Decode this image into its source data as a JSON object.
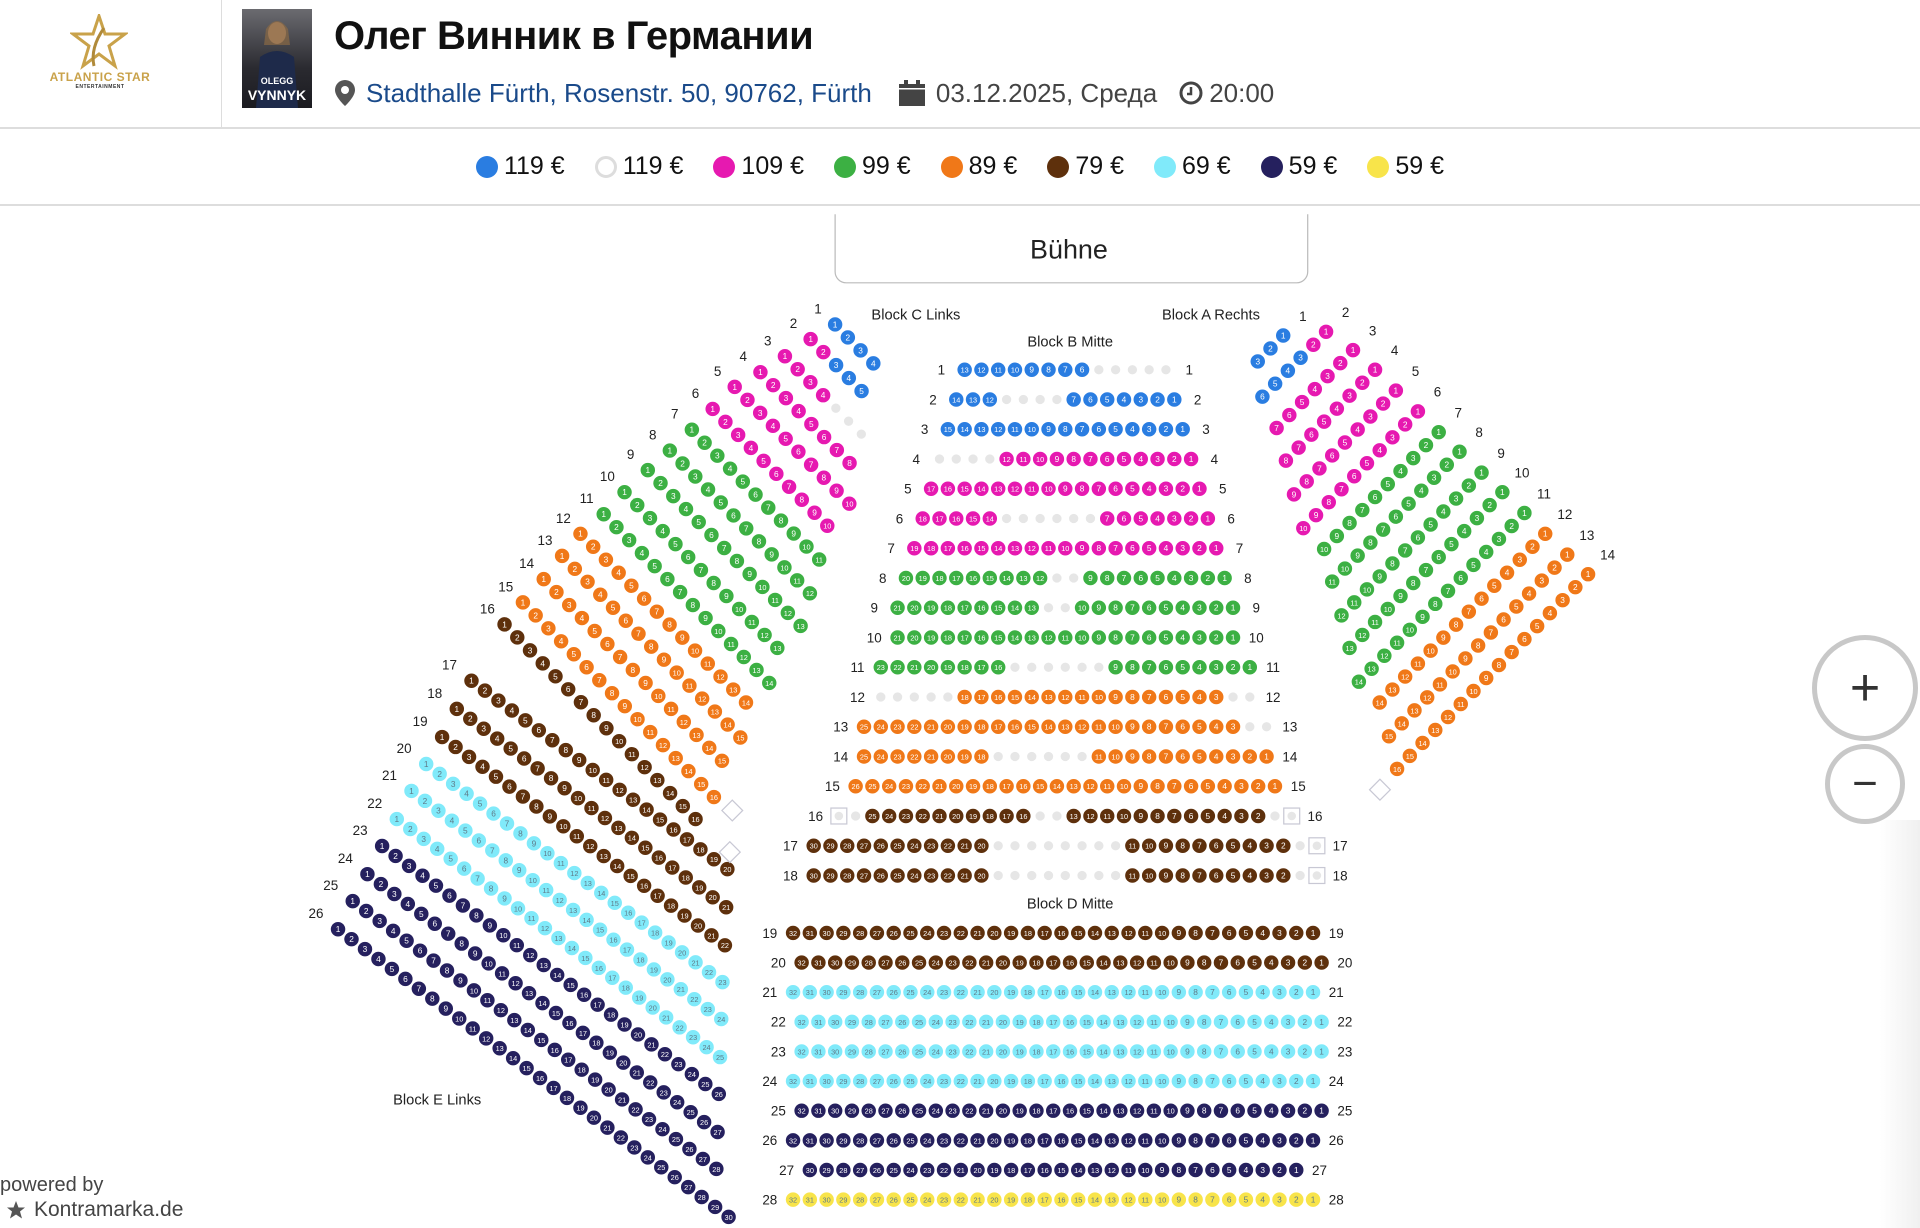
{
  "header": {
    "logo_text": "ATLANTIC STAR",
    "logo_subtext": "ENTERTAINMENT",
    "poster_line1": "OLEGG",
    "poster_line2": "VYNNYK",
    "title": "Олег Винник в Германии",
    "venue": "Stadthalle Fürth, Rosenstr. 50, 90762, Fürth",
    "date": "03.12.2025, Среда",
    "time": "20:00"
  },
  "legend": [
    {
      "price": "119 €",
      "color": "#2a7de1"
    },
    {
      "price": "119 €",
      "color": "#ffffff"
    },
    {
      "price": "109 €",
      "color": "#e619b0"
    },
    {
      "price": "99 €",
      "color": "#3cb043"
    },
    {
      "price": "89 €",
      "color": "#f07818"
    },
    {
      "price": "79 €",
      "color": "#5e300c"
    },
    {
      "price": "69 €",
      "color": "#80eafa"
    },
    {
      "price": "59 €",
      "color": "#25205e"
    },
    {
      "price": "59 €",
      "color": "#f8e44a"
    }
  ],
  "colors": {
    "blue": "#2a7de1",
    "magenta": "#e619b0",
    "green": "#3cb043",
    "orange": "#f07818",
    "brown": "#5e300c",
    "cyan": "#80eafa",
    "navy": "#25205e",
    "yellow": "#f8e44a",
    "empty": "#e6e6e6"
  },
  "stage": "Bühne",
  "blocks": {
    "c_links": "Block C Links",
    "b_mitte": "Block B Mitte",
    "a_rechts": "Block A Rechts",
    "d_mitte": "Block D Mitte",
    "e_links": "Block E Links"
  },
  "block_b_rows": [
    {
      "row": "1",
      "seats": [
        [
          "blue",
          13,
          6
        ],
        [
          "empty",
          5
        ]
      ]
    },
    {
      "row": "2",
      "seats": [
        [
          "blue",
          14,
          12
        ],
        [
          "empty",
          4
        ],
        [
          "blue",
          7,
          1
        ]
      ]
    },
    {
      "row": "3",
      "seats": [
        [
          "blue",
          15,
          1
        ]
      ]
    },
    {
      "row": "4",
      "seats": [
        [
          "empty",
          4
        ],
        [
          "magenta",
          12,
          1
        ]
      ]
    },
    {
      "row": "5",
      "seats": [
        [
          "magenta",
          17,
          1
        ]
      ]
    },
    {
      "row": "6",
      "seats": [
        [
          "magenta",
          18,
          14
        ],
        [
          "empty",
          6
        ],
        [
          "magenta",
          7,
          1
        ]
      ]
    },
    {
      "row": "7",
      "seats": [
        [
          "magenta",
          19,
          1
        ]
      ]
    },
    {
      "row": "8",
      "seats": [
        [
          "green",
          20,
          12
        ],
        [
          "empty",
          2
        ],
        [
          "green",
          9,
          1
        ]
      ]
    },
    {
      "row": "9",
      "seats": [
        [
          "green",
          21,
          13
        ],
        [
          "empty",
          2
        ],
        [
          "green",
          10,
          1
        ]
      ]
    },
    {
      "row": "10",
      "seats": [
        [
          "green",
          21,
          1
        ]
      ]
    },
    {
      "row": "11",
      "seats": [
        [
          "green",
          23,
          16
        ],
        [
          "empty",
          6
        ],
        [
          "green",
          9,
          1
        ]
      ]
    },
    {
      "row": "12",
      "seats": [
        [
          "empty",
          5
        ],
        [
          "orange",
          18,
          3
        ],
        [
          "empty",
          2
        ]
      ]
    },
    {
      "row": "13",
      "seats": [
        [
          "orange",
          25,
          3
        ],
        [
          "empty",
          2
        ]
      ]
    },
    {
      "row": "14",
      "seats": [
        [
          "orange",
          25,
          18
        ],
        [
          "empty",
          6
        ],
        [
          "orange",
          11,
          1
        ]
      ]
    },
    {
      "row": "15",
      "seats": [
        [
          "orange",
          26,
          1
        ]
      ]
    },
    {
      "row": "16",
      "seats": [
        [
          "box"
        ],
        [
          "empty",
          1
        ],
        [
          "brown",
          25,
          16
        ],
        [
          "empty",
          2
        ],
        [
          "brown",
          13,
          2
        ],
        [
          "empty",
          1
        ],
        [
          "box"
        ]
      ]
    },
    {
      "row": "17",
      "seats": [
        [
          "brown",
          30,
          20
        ],
        [
          "empty",
          8
        ],
        [
          "brown",
          11,
          2
        ],
        [
          "empty",
          1
        ],
        [
          "box"
        ]
      ]
    },
    {
      "row": "18",
      "seats": [
        [
          "brown",
          30,
          20
        ],
        [
          "empty",
          8
        ],
        [
          "brown",
          11,
          2
        ],
        [
          "empty",
          1
        ],
        [
          "box"
        ]
      ]
    }
  ],
  "block_d_rows": [
    {
      "row": "19",
      "seats": [
        [
          "brown",
          32,
          1
        ]
      ]
    },
    {
      "row": "20",
      "seats": [
        [
          "brown",
          32,
          1
        ]
      ]
    },
    {
      "row": "21",
      "seats": [
        [
          "cyan",
          32,
          1
        ]
      ]
    },
    {
      "row": "22",
      "seats": [
        [
          "cyan",
          32,
          1
        ]
      ]
    },
    {
      "row": "23",
      "seats": [
        [
          "cyan",
          32,
          1
        ]
      ]
    },
    {
      "row": "24",
      "seats": [
        [
          "cyan",
          32,
          1
        ]
      ]
    },
    {
      "row": "25",
      "seats": [
        [
          "navy",
          32,
          1
        ]
      ]
    },
    {
      "row": "26",
      "seats": [
        [
          "navy",
          32,
          1
        ]
      ]
    },
    {
      "row": "27",
      "seats": [
        [
          "navy",
          30,
          1
        ]
      ]
    },
    {
      "row": "28",
      "seats": [
        [
          "yellow",
          32,
          1
        ]
      ]
    }
  ],
  "block_c_rows": [
    {
      "row": "1",
      "seats": [
        [
          "blue",
          4
        ]
      ]
    },
    {
      "row": "2",
      "seats": [
        [
          "magenta",
          2
        ],
        [
          "blue",
          3
        ]
      ]
    },
    {
      "row": "3",
      "seats": [
        [
          "magenta",
          4
        ],
        [
          "empty",
          3
        ]
      ]
    },
    {
      "row": "4",
      "seats": [
        [
          "magenta",
          8
        ]
      ]
    },
    {
      "row": "5",
      "seats": [
        [
          "magenta",
          10
        ]
      ]
    },
    {
      "row": "6",
      "seats": [
        [
          "magenta",
          10
        ]
      ]
    },
    {
      "row": "7",
      "seats": [
        [
          "green",
          11
        ]
      ]
    },
    {
      "row": "8",
      "seats": [
        [
          "green",
          12
        ]
      ]
    },
    {
      "row": "9",
      "seats": [
        [
          "green",
          13
        ]
      ]
    },
    {
      "row": "10",
      "seats": [
        [
          "green",
          13
        ]
      ]
    },
    {
      "row": "11",
      "seats": [
        [
          "green",
          14
        ]
      ]
    },
    {
      "row": "12",
      "seats": [
        [
          "orange",
          14
        ]
      ]
    },
    {
      "row": "13",
      "seats": [
        [
          "orange",
          15
        ]
      ]
    },
    {
      "row": "14",
      "seats": [
        [
          "orange",
          15
        ]
      ]
    },
    {
      "row": "15",
      "seats": [
        [
          "orange",
          16
        ]
      ]
    },
    {
      "row": "16",
      "seats": [
        [
          "brown",
          16
        ]
      ]
    }
  ],
  "block_e_rows": [
    {
      "row": "17",
      "seats": [
        [
          "brown",
          20
        ]
      ]
    },
    {
      "row": "18",
      "seats": [
        [
          "brown",
          21
        ]
      ]
    },
    {
      "row": "19",
      "seats": [
        [
          "brown",
          22
        ]
      ]
    },
    {
      "row": "20",
      "seats": [
        [
          "cyan",
          23
        ]
      ]
    },
    {
      "row": "21",
      "seats": [
        [
          "cyan",
          24
        ]
      ]
    },
    {
      "row": "22",
      "seats": [
        [
          "cyan",
          25
        ]
      ]
    },
    {
      "row": "23",
      "seats": [
        [
          "navy",
          26
        ]
      ]
    },
    {
      "row": "24",
      "seats": [
        [
          "navy",
          27
        ]
      ]
    },
    {
      "row": "25",
      "seats": [
        [
          "navy",
          28
        ]
      ]
    },
    {
      "row": "26",
      "seats": [
        [
          "navy",
          30
        ]
      ]
    }
  ],
  "block_a_rows": [
    {
      "row": "1",
      "seats": [
        [
          "blue",
          3
        ]
      ]
    },
    {
      "row": "2",
      "seats": [
        [
          "magenta",
          2
        ],
        [
          "blue",
          4
        ]
      ]
    },
    {
      "row": "3",
      "seats": [
        [
          "magenta",
          7
        ]
      ]
    },
    {
      "row": "4",
      "seats": [
        [
          "magenta",
          8
        ]
      ]
    },
    {
      "row": "5",
      "seats": [
        [
          "magenta",
          9
        ]
      ]
    },
    {
      "row": "6",
      "seats": [
        [
          "magenta",
          10
        ]
      ]
    },
    {
      "row": "7",
      "seats": [
        [
          "green",
          10
        ]
      ]
    },
    {
      "row": "8",
      "seats": [
        [
          "green",
          11
        ]
      ]
    },
    {
      "row": "9",
      "seats": [
        [
          "green",
          12
        ]
      ]
    },
    {
      "row": "10",
      "seats": [
        [
          "green",
          13
        ]
      ]
    },
    {
      "row": "11",
      "seats": [
        [
          "green",
          14
        ]
      ]
    },
    {
      "row": "12",
      "seats": [
        [
          "orange",
          14
        ]
      ]
    },
    {
      "row": "13",
      "seats": [
        [
          "orange",
          15
        ]
      ]
    },
    {
      "row": "14",
      "seats": [
        [
          "orange",
          16
        ]
      ]
    }
  ],
  "zoom": {
    "in": "+",
    "out": "−"
  },
  "footer": {
    "powered_by": "powered by",
    "brand": "Kontramarka.de"
  }
}
